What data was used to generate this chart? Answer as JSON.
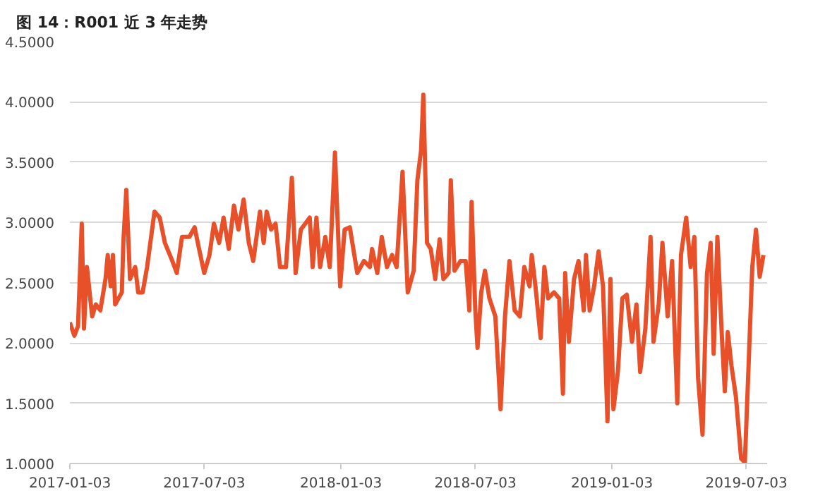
{
  "chart_data": {
    "type": "line",
    "title": "图 14：R001 近 3 年走势",
    "xlim": [
      "2017-01-03",
      "2019-07-31"
    ],
    "xticks": [
      "2017-01-03",
      "2017-07-03",
      "2018-01-03",
      "2018-07-03",
      "2019-01-03",
      "2019-07-03"
    ],
    "ylim": [
      1.0,
      4.5
    ],
    "yticks": [
      {
        "value": 1.0,
        "label": "1.0000"
      },
      {
        "value": 1.5,
        "label": "1.5000"
      },
      {
        "value": 2.0,
        "label": "2.0000"
      },
      {
        "value": 2.5,
        "label": "2.5000"
      },
      {
        "value": 3.0,
        "label": "3.0000"
      },
      {
        "value": 3.5,
        "label": "3.5000"
      },
      {
        "value": 4.0,
        "label": "4.0000"
      },
      {
        "value": 4.5,
        "label": "4.5000"
      }
    ],
    "grid": "y",
    "marker": "none",
    "line_style": "solid",
    "series": [
      {
        "color": "#e8502a",
        "x": [
          "2017-01-03",
          "2017-01-09",
          "2017-01-14",
          "2017-01-19",
          "2017-01-22",
          "2017-01-26",
          "2017-02-02",
          "2017-02-07",
          "2017-02-13",
          "2017-02-20",
          "2017-02-23",
          "2017-02-27",
          "2017-03-02",
          "2017-03-05",
          "2017-03-14",
          "2017-03-16",
          "2017-03-20",
          "2017-03-25",
          "2017-04-01",
          "2017-04-05",
          "2017-04-11",
          "2017-04-17",
          "2017-04-27",
          "2017-05-04",
          "2017-05-11",
          "2017-05-21",
          "2017-05-27",
          "2017-06-03",
          "2017-06-13",
          "2017-06-20",
          "2017-06-26",
          "2017-07-03",
          "2017-07-10",
          "2017-07-16",
          "2017-07-23",
          "2017-07-29",
          "2017-08-05",
          "2017-08-12",
          "2017-08-18",
          "2017-08-25",
          "2017-09-01",
          "2017-09-07",
          "2017-09-16",
          "2017-09-21",
          "2017-09-25",
          "2017-10-01",
          "2017-10-07",
          "2017-10-13",
          "2017-10-21",
          "2017-10-29",
          "2017-11-03",
          "2017-11-10",
          "2017-11-16",
          "2017-11-22",
          "2017-11-26",
          "2017-12-01",
          "2017-12-06",
          "2017-12-13",
          "2017-12-19",
          "2017-12-26",
          "2018-01-02",
          "2018-01-08",
          "2018-01-15",
          "2018-01-25",
          "2018-02-03",
          "2018-02-11",
          "2018-02-14",
          "2018-02-21",
          "2018-02-27",
          "2018-03-06",
          "2018-03-13",
          "2018-03-19",
          "2018-03-27",
          "2018-04-03",
          "2018-04-11",
          "2018-04-16",
          "2018-04-21",
          "2018-04-24",
          "2018-04-29",
          "2018-05-04",
          "2018-05-10",
          "2018-05-16",
          "2018-05-21",
          "2018-05-28",
          "2018-05-31",
          "2018-06-05",
          "2018-06-13",
          "2018-06-20",
          "2018-06-25",
          "2018-06-28",
          "2018-07-03",
          "2018-07-06",
          "2018-07-11",
          "2018-07-16",
          "2018-07-22",
          "2018-07-30",
          "2018-08-06",
          "2018-08-12",
          "2018-08-18",
          "2018-08-25",
          "2018-09-01",
          "2018-09-07",
          "2018-09-14",
          "2018-09-17",
          "2018-09-22",
          "2018-09-29",
          "2018-10-04",
          "2018-10-09",
          "2018-10-17",
          "2018-10-24",
          "2018-10-29",
          "2018-11-01",
          "2018-11-06",
          "2018-11-13",
          "2018-11-19",
          "2018-11-26",
          "2018-11-29",
          "2018-12-04",
          "2018-12-10",
          "2018-12-16",
          "2018-12-22",
          "2018-12-28",
          "2019-01-01",
          "2019-01-05",
          "2019-01-11",
          "2019-01-17",
          "2019-01-23",
          "2019-01-30",
          "2019-02-05",
          "2019-02-10",
          "2019-02-17",
          "2019-02-24",
          "2019-02-28",
          "2019-03-07",
          "2019-03-12",
          "2019-03-19",
          "2019-03-25",
          "2019-04-01",
          "2019-04-06",
          "2019-04-13",
          "2019-04-19",
          "2019-04-24",
          "2019-04-29",
          "2019-05-05",
          "2019-05-11",
          "2019-05-16",
          "2019-05-20",
          "2019-05-25",
          "2019-05-31",
          "2019-06-04",
          "2019-06-08",
          "2019-06-13",
          "2019-06-19",
          "2019-06-26",
          "2019-07-01",
          "2019-07-06",
          "2019-07-11",
          "2019-07-16",
          "2019-07-21",
          "2019-07-26"
        ],
        "values": [
          2.17,
          2.06,
          2.14,
          2.99,
          2.12,
          2.63,
          2.22,
          2.32,
          2.27,
          2.53,
          2.73,
          2.47,
          2.73,
          2.32,
          2.42,
          2.83,
          3.27,
          2.53,
          2.63,
          2.42,
          2.42,
          2.63,
          3.09,
          3.04,
          2.83,
          2.68,
          2.58,
          2.88,
          2.88,
          2.96,
          2.78,
          2.58,
          2.73,
          2.99,
          2.83,
          3.04,
          2.78,
          3.14,
          2.94,
          3.19,
          2.83,
          2.68,
          3.09,
          2.83,
          3.09,
          2.94,
          2.99,
          2.63,
          2.63,
          3.37,
          2.58,
          2.94,
          2.99,
          3.04,
          2.63,
          3.04,
          2.63,
          2.88,
          2.63,
          3.58,
          2.47,
          2.94,
          2.96,
          2.58,
          2.68,
          2.63,
          2.78,
          2.58,
          2.88,
          2.63,
          2.73,
          2.63,
          3.42,
          2.42,
          2.6,
          3.35,
          3.6,
          4.06,
          2.83,
          2.78,
          2.53,
          2.86,
          2.53,
          2.58,
          3.35,
          2.6,
          2.68,
          2.68,
          2.27,
          3.17,
          2.27,
          1.96,
          2.42,
          2.6,
          2.37,
          2.22,
          1.45,
          2.22,
          2.68,
          2.27,
          2.22,
          2.63,
          2.47,
          2.73,
          2.47,
          2.04,
          2.63,
          2.37,
          2.42,
          2.37,
          1.58,
          2.58,
          2.01,
          2.53,
          2.68,
          2.27,
          2.73,
          2.27,
          2.47,
          2.76,
          2.47,
          1.35,
          2.53,
          1.45,
          1.76,
          2.37,
          2.4,
          2.01,
          2.32,
          1.76,
          2.12,
          2.88,
          2.01,
          2.32,
          2.83,
          2.22,
          2.68,
          1.5,
          2.73,
          3.04,
          2.63,
          2.88,
          1.71,
          1.24,
          2.58,
          2.83,
          1.91,
          2.88,
          2.06,
          1.6,
          2.09,
          1.81,
          1.55,
          1.04,
          1.01,
          1.81,
          2.63,
          2.94,
          2.55,
          2.73
        ]
      }
    ]
  }
}
